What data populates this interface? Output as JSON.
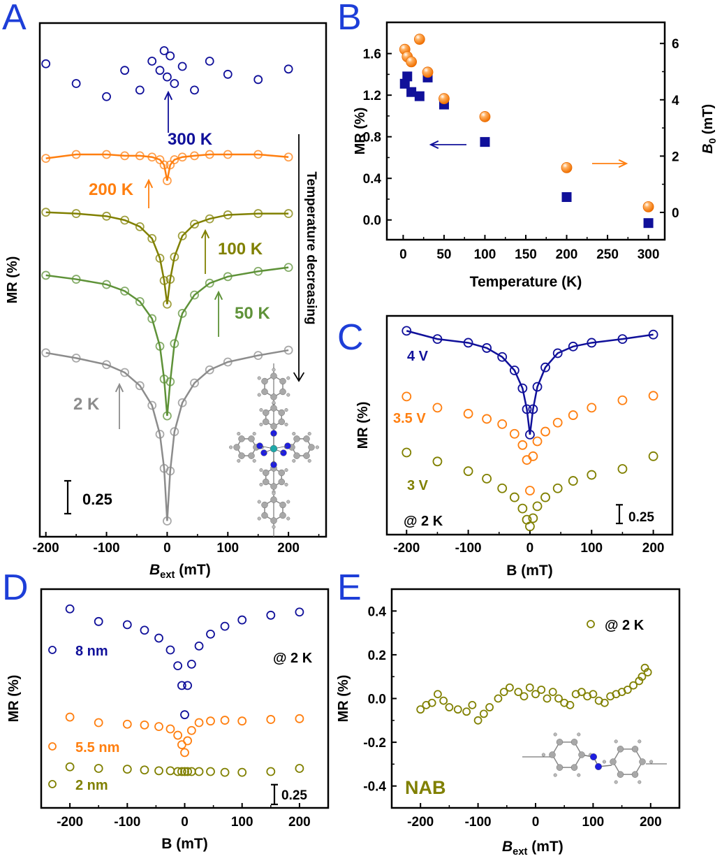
{
  "panel_letters": [
    "A",
    "B",
    "C",
    "D",
    "E"
  ],
  "colors": {
    "letter": "#1d3ed8",
    "navy": "#10109a",
    "orange": "#ff7f10",
    "olive": "#808000",
    "green": "#5e9238",
    "gray": "#8c8c8c",
    "axis": "#000000"
  },
  "chart_data": [
    {
      "panel": "A",
      "type": "scatter",
      "ylabel": "MR (%)",
      "xlabel": {
        "symbol": "B",
        "sub": "ext",
        "unit": " (mT)"
      },
      "xlim": [
        -210,
        262
      ],
      "ylim": [
        0,
        3.91
      ],
      "y_tick_labels": "none",
      "xticks": [
        "-200",
        "-100",
        "0",
        "100",
        "200"
      ],
      "scale_bar": {
        "value": 0.25,
        "label": "0.25"
      },
      "labels": [
        "300 K",
        "200 K",
        "100 K",
        "50 K",
        "2 K",
        "Temperature decreasing"
      ],
      "x": [
        -200,
        -150,
        -100,
        -70,
        -45,
        -25,
        -12,
        -5,
        0,
        5,
        12,
        25,
        45,
        70,
        100,
        150,
        200
      ],
      "series": [
        {
          "name": "300 K",
          "color": "#10109a",
          "fit": false,
          "y": [
            3.6,
            3.45,
            3.35,
            3.55,
            3.4,
            3.62,
            3.55,
            3.7,
            3.5,
            3.66,
            3.45,
            3.58,
            3.4,
            3.62,
            3.52,
            3.48,
            3.56
          ]
        },
        {
          "name": "200 K",
          "color": "#ff7f10",
          "fit": true,
          "y": [
            2.88,
            2.91,
            2.91,
            2.9,
            2.9,
            2.89,
            2.87,
            2.83,
            2.71,
            2.83,
            2.87,
            2.89,
            2.9,
            2.91,
            2.91,
            2.91,
            2.89
          ]
        },
        {
          "name": "100 K",
          "color": "#808000",
          "fit": true,
          "y": [
            2.47,
            2.46,
            2.44,
            2.41,
            2.36,
            2.27,
            2.12,
            1.95,
            1.77,
            1.96,
            2.13,
            2.29,
            2.38,
            2.42,
            2.45,
            2.46,
            2.46
          ]
        },
        {
          "name": "50 K",
          "color": "#5e9238",
          "fit": true,
          "y": [
            1.99,
            1.96,
            1.92,
            1.87,
            1.79,
            1.66,
            1.45,
            1.2,
            0.92,
            1.18,
            1.47,
            1.7,
            1.84,
            1.93,
            1.98,
            2.02,
            2.05
          ]
        },
        {
          "name": "2 K",
          "color": "#8c8c8c",
          "fit": true,
          "y": [
            1.4,
            1.36,
            1.31,
            1.25,
            1.15,
            1.0,
            0.78,
            0.52,
            0.12,
            0.5,
            0.8,
            1.02,
            1.17,
            1.27,
            1.33,
            1.38,
            1.42
          ]
        }
      ]
    },
    {
      "panel": "B",
      "type": "scatter",
      "xlabel": "Temperature (K)",
      "ylabel": "MR (%)",
      "y2label": {
        "symbol": "B",
        "sub": "0",
        "unit": " (mT)"
      },
      "xlim": [
        -20,
        320
      ],
      "ylim": [
        -0.19,
        1.9
      ],
      "y2lim": [
        -0.97,
        6.75
      ],
      "xticks": [
        "0",
        "50",
        "100",
        "150",
        "200",
        "250",
        "300"
      ],
      "yticks": [
        "0.0",
        "0.4",
        "0.8",
        "1.2",
        "1.6"
      ],
      "y2ticks": [
        "0",
        "2",
        "4",
        "6"
      ],
      "x": [
        2,
        5,
        10,
        20,
        30,
        50,
        100,
        200,
        300
      ],
      "series": [
        {
          "axis": "left",
          "marker": "square",
          "color": "#10109a",
          "y": [
            1.31,
            1.38,
            1.23,
            1.19,
            1.37,
            1.11,
            0.75,
            0.22,
            -0.03
          ]
        },
        {
          "axis": "right",
          "marker": "sphere",
          "color": "#ff7f10",
          "y": [
            5.79,
            5.53,
            5.35,
            6.15,
            4.98,
            4.04,
            3.4,
            1.59,
            0.2
          ]
        }
      ]
    },
    {
      "panel": "C",
      "type": "scatter",
      "ylabel": "MR (%)",
      "xlabel": "B (mT)",
      "xlim": [
        -232,
        231
      ],
      "ylim": [
        0,
        2.93
      ],
      "y_tick_labels": "none",
      "xticks": [
        "-200",
        "-100",
        "0",
        "100",
        "200"
      ],
      "scale_bar": {
        "value": 0.25,
        "label": "0.25"
      },
      "labels": [
        "4 V",
        "3.5 V",
        "3 V",
        "@ 2 K"
      ],
      "x": [
        -200,
        -150,
        -100,
        -70,
        -45,
        -25,
        -12,
        -5,
        0,
        5,
        12,
        25,
        45,
        70,
        100,
        150,
        200
      ],
      "series": [
        {
          "name": "4 V",
          "color": "#10109a",
          "fit": true,
          "y": [
            2.73,
            2.62,
            2.57,
            2.5,
            2.38,
            2.2,
            1.96,
            1.68,
            1.34,
            1.68,
            1.98,
            2.24,
            2.43,
            2.52,
            2.57,
            2.62,
            2.68
          ]
        },
        {
          "name": "3.5 V",
          "color": "#ff7f10",
          "fit": false,
          "y": [
            1.85,
            1.7,
            1.62,
            1.55,
            1.48,
            1.35,
            1.2,
            1.0,
            0.59,
            1.05,
            1.25,
            1.38,
            1.5,
            1.6,
            1.7,
            1.8,
            1.86
          ]
        },
        {
          "name": "3 V",
          "color": "#808000",
          "fit": false,
          "y": [
            1.1,
            0.98,
            0.85,
            0.75,
            0.62,
            0.5,
            0.35,
            0.2,
            0.11,
            0.22,
            0.38,
            0.5,
            0.62,
            0.72,
            0.8,
            0.88,
            1.05
          ]
        }
      ]
    },
    {
      "panel": "D",
      "type": "scatter",
      "ylabel": "MR (%)",
      "xlabel": "B (mT)",
      "xlim": [
        -250,
        250
      ],
      "ylim": [
        0,
        2.77
      ],
      "y_tick_labels": "none",
      "xticks": [
        "-200",
        "-100",
        "0",
        "100",
        "200"
      ],
      "scale_bar": {
        "value": 0.25,
        "label": "0.25"
      },
      "labels": [
        "8 nm",
        "5.5 nm",
        "2 nm",
        "@ 2 K"
      ],
      "x": [
        -200,
        -150,
        -100,
        -70,
        -45,
        -25,
        -12,
        -5,
        0,
        5,
        12,
        25,
        45,
        70,
        100,
        150,
        200
      ],
      "series": [
        {
          "name": "8 nm",
          "color": "#10109a",
          "fit": false,
          "y": [
            2.52,
            2.36,
            2.32,
            2.25,
            2.15,
            2.0,
            1.8,
            1.55,
            1.18,
            1.55,
            1.82,
            2.05,
            2.2,
            2.3,
            2.38,
            2.44,
            2.48
          ]
        },
        {
          "name": "5.5 nm",
          "color": "#ff7f10",
          "fit": false,
          "y": [
            1.15,
            1.08,
            1.06,
            1.05,
            1.03,
            1.0,
            0.92,
            0.8,
            0.7,
            0.85,
            0.98,
            1.08,
            1.1,
            1.11,
            1.1,
            1.12,
            1.13
          ]
        },
        {
          "name": "2 nm",
          "color": "#808000",
          "fit": false,
          "y": [
            0.52,
            0.5,
            0.49,
            0.48,
            0.47,
            0.47,
            0.46,
            0.46,
            0.46,
            0.46,
            0.46,
            0.46,
            0.46,
            0.45,
            0.45,
            0.46,
            0.5
          ]
        }
      ]
    },
    {
      "panel": "E",
      "type": "scatter",
      "ylabel": "MR (%)",
      "xlabel": {
        "symbol": "B",
        "sub": "ext",
        "unit": " (mT)"
      },
      "xlim": [
        -250,
        250
      ],
      "ylim": [
        -0.5,
        0.5
      ],
      "xticks": [
        "-200",
        "-100",
        "0",
        "100",
        "200"
      ],
      "yticks": [
        "-0.4",
        "-0.2",
        "0.0",
        "0.2",
        "0.4"
      ],
      "labels": [
        "@ 2 K",
        "NAB"
      ],
      "x": [
        -200,
        -190,
        -180,
        -170,
        -160,
        -150,
        -135,
        -120,
        -110,
        -100,
        -90,
        -80,
        -65,
        -55,
        -45,
        -30,
        -20,
        -10,
        0,
        10,
        20,
        30,
        40,
        50,
        60,
        70,
        80,
        90,
        100,
        110,
        120,
        130,
        140,
        150,
        160,
        170,
        180,
        185,
        190,
        195
      ],
      "series": [
        {
          "name": "@ 2 K",
          "color": "#808000",
          "fit": false,
          "y": [
            -0.05,
            -0.03,
            -0.02,
            0.02,
            -0.01,
            -0.04,
            -0.05,
            -0.06,
            -0.03,
            -0.1,
            -0.07,
            -0.04,
            0.0,
            0.03,
            0.05,
            0.03,
            0.01,
            0.05,
            0.02,
            0.04,
            0.0,
            0.03,
            0.0,
            -0.02,
            -0.03,
            0.02,
            0.03,
            0.01,
            0.02,
            -0.01,
            -0.02,
            0.01,
            0.02,
            0.03,
            0.04,
            0.06,
            0.08,
            0.1,
            0.14,
            0.12
          ]
        }
      ]
    }
  ]
}
